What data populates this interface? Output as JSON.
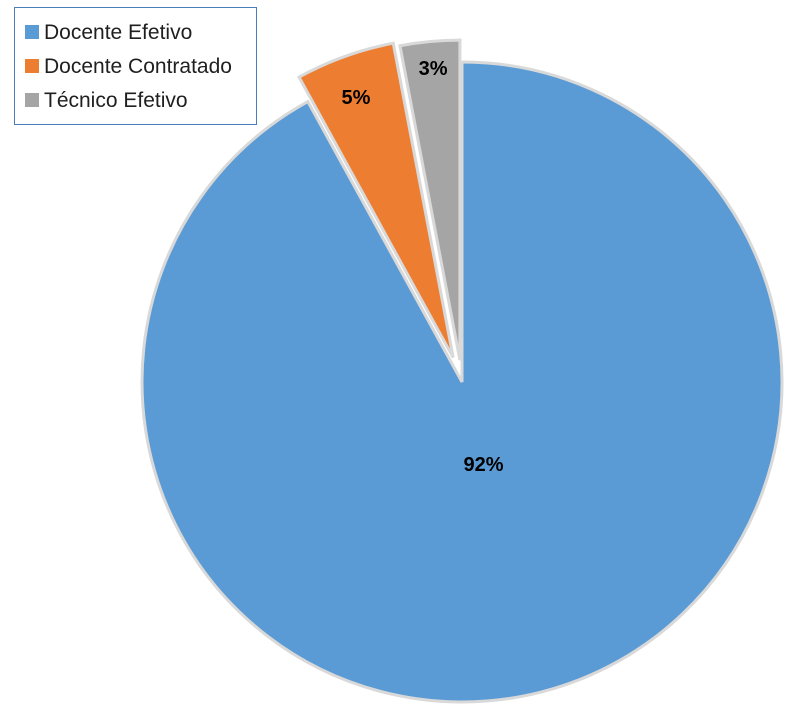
{
  "chart_data": {
    "type": "pie",
    "exploded": true,
    "legend_position": "top-left",
    "categories": [
      "Docente Efetivo",
      "Docente Contratado",
      "Técnico Efetivo"
    ],
    "values": [
      92,
      5,
      3
    ],
    "data_labels": [
      "92%",
      "5%",
      "3%"
    ],
    "colors": [
      "#5b9bd5",
      "#ed7d31",
      "#a5a5a5"
    ]
  }
}
